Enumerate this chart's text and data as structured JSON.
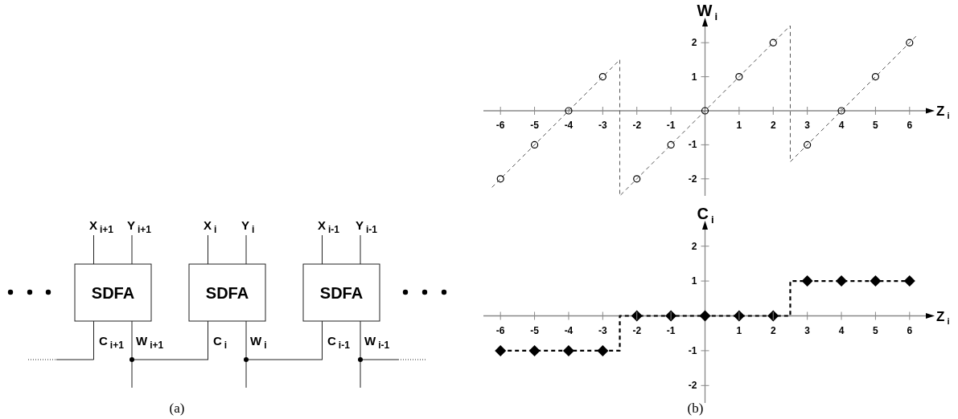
{
  "chart_data": [
    {
      "type": "other",
      "annotations": [
        "SDFA",
        "X$_{i+1}$",
        "Y$_{i+1}$",
        "C$_{i+1}$",
        "W$_{i+1}$",
        "SDFA",
        "X$_{i}$",
        "Y$_{i}$",
        "C$_{i}$",
        "W$_{i}$",
        "SDFA",
        "X$_{i-1}$",
        "Y$_{i-1}$",
        "C$_{i-1}$",
        "W$_{i-1}$",
        "(a)"
      ]
    },
    {
      "type": "scatter",
      "xlabel": "Z$_{i}$",
      "ylabel": "W$_{i}$",
      "x": [
        -6,
        -5,
        -4,
        -3,
        -2,
        -1,
        0,
        1,
        2,
        3,
        4,
        5,
        6
      ],
      "marker": "circle",
      "series": [
        {
          "type": "line",
          "color": "#555555",
          "line_style": "dashed",
          "marker": "none",
          "x": [
            -6.25,
            -2.5,
            -2.5,
            2.5,
            2.5,
            6.25
          ],
          "values": [
            -2.25,
            1.5,
            -2.5,
            2.5,
            -1.5,
            2.25
          ]
        },
        {
          "type": "scatter",
          "color": "#000000",
          "values": [
            -2,
            -1,
            0,
            1,
            -2,
            -1,
            0,
            1,
            2,
            -1,
            0,
            1,
            2
          ]
        }
      ],
      "xlim": [
        -6.5,
        6.5
      ],
      "ylim": [
        -2.5,
        2.5
      ],
      "xticks": [
        -6,
        -5,
        -4,
        -3,
        -2,
        -1,
        1,
        2,
        3,
        4,
        5,
        6
      ],
      "yticks": [
        -2,
        -1,
        1,
        2
      ]
    },
    {
      "type": "step",
      "xlabel": "Z$_{i}$",
      "ylabel": "C$_{i}$",
      "x": [
        -6,
        -5,
        -4,
        -3,
        -2,
        -1,
        0,
        1,
        2,
        3,
        4,
        5,
        6
      ],
      "marker": "diamond",
      "line_style": "dashed",
      "series": [
        {
          "color": "#000000",
          "values": [
            -1,
            -1,
            -1,
            -1,
            0,
            0,
            0,
            0,
            0,
            1,
            1,
            1,
            1
          ]
        }
      ],
      "xlim": [
        -6.5,
        6.5
      ],
      "ylim": [
        -2.5,
        2.5
      ],
      "xticks": [
        -6,
        -5,
        -4,
        -3,
        -2,
        -1,
        1,
        2,
        3,
        4,
        5,
        6
      ],
      "yticks": [
        -2,
        -1,
        1,
        2
      ],
      "annotations": [
        "(b)"
      ]
    }
  ]
}
